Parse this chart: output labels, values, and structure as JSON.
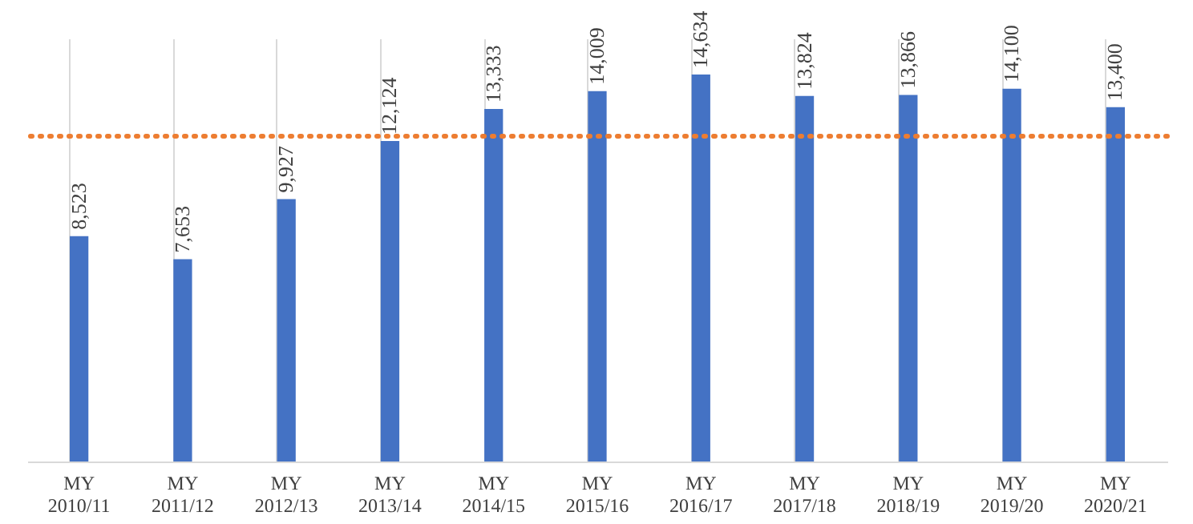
{
  "chart_data": {
    "type": "bar",
    "categories": [
      "MY 2010/11",
      "MY 2011/12",
      "MY 2012/13",
      "MY 2013/14",
      "MY 2014/15",
      "MY 2015/16",
      "MY 2016/17",
      "MY 2017/18",
      "MY 2018/19",
      "MY 2019/20",
      "MY 2020/21"
    ],
    "series": [
      {
        "color": "#4472c4",
        "values": [
          8523,
          7653,
          9927,
          12124,
          13333,
          14009,
          14634,
          13824,
          13866,
          14100,
          13400
        ],
        "value_labels": [
          "8,523",
          "7,653",
          "9,927",
          "12,124",
          "13,333",
          "14,009",
          "14,634",
          "13,824",
          "13,866",
          "14,100",
          "13,400"
        ]
      }
    ],
    "tick_labels": "x",
    "grid": "x",
    "ref_lines": [
      {
        "axis": "y",
        "value": 12300,
        "color": "#ed7d31",
        "line_style": "dotted"
      }
    ]
  }
}
